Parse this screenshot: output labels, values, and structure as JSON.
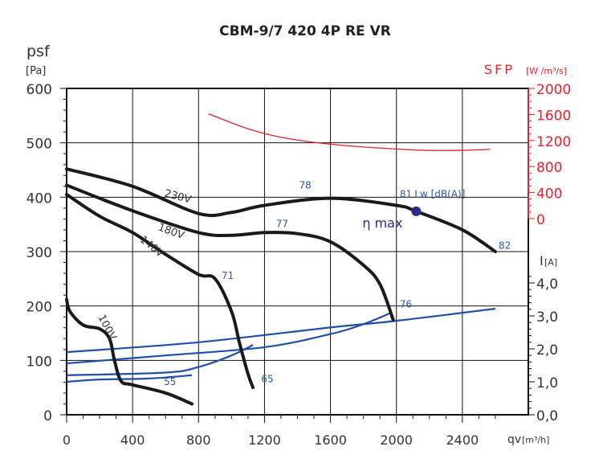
{
  "chart_data": {
    "type": "line",
    "title": "CBM-9/7 420 4P RE VR",
    "xlabel": "qv",
    "xunit": "[m³/h]",
    "ylabel": "psf",
    "yunit": "[Pa]",
    "y2label": "SFP",
    "y2unit": "[W /m³/s]",
    "y3label": "I",
    "y3unit": "[A]",
    "xlim": [
      0,
      2800
    ],
    "ylim": [
      0,
      600
    ],
    "y2lim": [
      0,
      2000
    ],
    "y3lim": [
      0,
      5
    ],
    "xticks": [
      "0",
      "400",
      "800",
      "1200",
      "1600",
      "2000",
      "2400"
    ],
    "yticks": [
      "0",
      "100",
      "200",
      "300",
      "400",
      "500",
      "600"
    ],
    "y2ticks": [
      "0",
      "400",
      "800",
      "1200",
      "1600",
      "2000"
    ],
    "y3ticks": [
      "0,0",
      "1,0",
      "2,0",
      "3,0",
      "4,0"
    ],
    "grid": true,
    "pressure_series": [
      {
        "name": "230V",
        "points": [
          [
            0,
            452
          ],
          [
            400,
            420
          ],
          [
            800,
            370
          ],
          [
            1000,
            372
          ],
          [
            1200,
            385
          ],
          [
            1600,
            398
          ],
          [
            2000,
            385
          ],
          [
            2120,
            374
          ],
          [
            2400,
            340
          ],
          [
            2600,
            300
          ]
        ]
      },
      {
        "name": "180V",
        "points": [
          [
            0,
            422
          ],
          [
            400,
            375
          ],
          [
            800,
            335
          ],
          [
            1000,
            330
          ],
          [
            1200,
            335
          ],
          [
            1400,
            333
          ],
          [
            1600,
            318
          ],
          [
            1800,
            275
          ],
          [
            1900,
            240
          ],
          [
            1980,
            175
          ]
        ]
      },
      {
        "name": "140V",
        "points": [
          [
            0,
            405
          ],
          [
            200,
            365
          ],
          [
            400,
            335
          ],
          [
            600,
            295
          ],
          [
            800,
            258
          ],
          [
            900,
            250
          ],
          [
            1000,
            190
          ],
          [
            1050,
            130
          ],
          [
            1100,
            75
          ],
          [
            1130,
            50
          ]
        ]
      },
      {
        "name": "100V",
        "points": [
          [
            0,
            212
          ],
          [
            20,
            190
          ],
          [
            100,
            165
          ],
          [
            200,
            158
          ],
          [
            260,
            140
          ],
          [
            290,
            100
          ],
          [
            330,
            62
          ],
          [
            400,
            55
          ],
          [
            600,
            40
          ],
          [
            760,
            20
          ]
        ]
      }
    ],
    "sfp_series": {
      "name": "SFP",
      "points": [
        [
          860,
          1610
        ],
        [
          1100,
          1380
        ],
        [
          1300,
          1250
        ],
        [
          1540,
          1160
        ],
        [
          1800,
          1100
        ],
        [
          2170,
          1050
        ],
        [
          2400,
          1050
        ],
        [
          2570,
          1065
        ]
      ]
    },
    "current_series": [
      {
        "name": "230V",
        "points": [
          [
            0,
            1.9
          ],
          [
            800,
            2.2
          ],
          [
            1600,
            2.65
          ],
          [
            2000,
            2.85
          ],
          [
            2600,
            3.22
          ]
        ]
      },
      {
        "name": "180V",
        "points": [
          [
            0,
            1.56
          ],
          [
            600,
            1.8
          ],
          [
            1200,
            2.05
          ],
          [
            1600,
            2.45
          ],
          [
            1800,
            2.75
          ],
          [
            1970,
            3.1
          ]
        ]
      },
      {
        "name": "140V",
        "points": [
          [
            0,
            1.2
          ],
          [
            600,
            1.28
          ],
          [
            800,
            1.45
          ],
          [
            1000,
            1.8
          ],
          [
            1130,
            2.12
          ]
        ]
      },
      {
        "name": "100V",
        "points": [
          [
            0,
            1.0
          ],
          [
            200,
            1.07
          ],
          [
            500,
            1.1
          ],
          [
            760,
            1.2
          ]
        ]
      }
    ],
    "eta_max": {
      "label": "η max",
      "point": [
        2120,
        374
      ]
    },
    "annotations": [
      {
        "text": "78",
        "x": 1410,
        "y": 416
      },
      {
        "text": "81",
        "x": 2020,
        "y": 400
      },
      {
        "text": "Lw [dB(A)]",
        "x": 2110,
        "y": 400
      },
      {
        "text": "77",
        "x": 1270,
        "y": 345
      },
      {
        "text": "82",
        "x": 2620,
        "y": 305
      },
      {
        "text": "71",
        "x": 940,
        "y": 250
      },
      {
        "text": "76",
        "x": 2020,
        "y": 197
      },
      {
        "text": "65",
        "x": 1180,
        "y": 60
      },
      {
        "text": "55",
        "x": 590,
        "y": 55
      }
    ],
    "voltage_labels": [
      {
        "text": "230V",
        "x": 590,
        "y": 402,
        "rot": 15
      },
      {
        "text": "180V",
        "x": 550,
        "y": 340,
        "rot": 20
      },
      {
        "text": "140V",
        "x": 440,
        "y": 320,
        "rot": 38
      },
      {
        "text": "100V",
        "x": 190,
        "y": 180,
        "rot": 62
      }
    ],
    "colors": {
      "pressure": "#1a1a1a",
      "sfp": "#e8202a",
      "current": "#1f4fa6",
      "label": "#2c57b0",
      "eta": "#2a2a8a"
    }
  }
}
